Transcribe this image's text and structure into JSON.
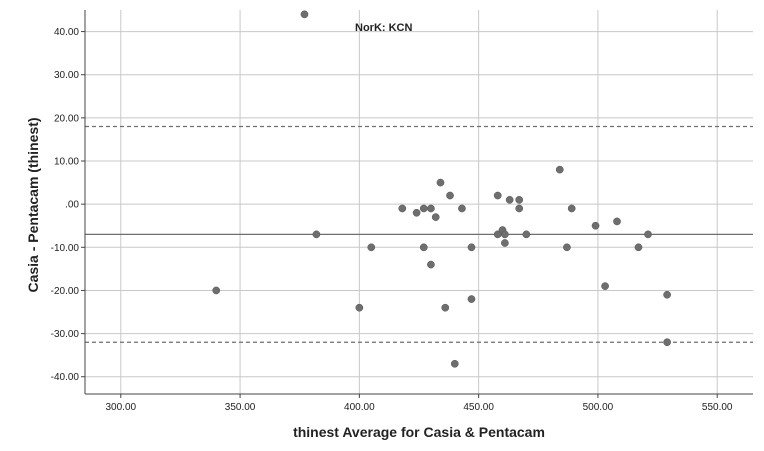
{
  "chart_data": {
    "type": "scatter",
    "title": "",
    "annotation": "NorK: KCN",
    "xlabel": "thinest Average for Casia & Pentacam",
    "ylabel": "Casia - Pentacam (thinest)",
    "xlim": [
      285,
      565
    ],
    "ylim": [
      -44,
      45
    ],
    "x_ticks": [
      300,
      350,
      400,
      450,
      500,
      550
    ],
    "x_tick_labels": [
      "300.00",
      "350.00",
      "400.00",
      "450.00",
      "500.00",
      "550.00"
    ],
    "y_ticks": [
      40,
      30,
      20,
      10,
      0,
      -10,
      -20,
      -30,
      -40
    ],
    "y_tick_labels": [
      "40.00",
      "30.00",
      "20.00",
      "10.00",
      ".00",
      "-10.00",
      "-20.00",
      "-30.00",
      "-40.00"
    ],
    "grid": true,
    "reference_lines": [
      {
        "type": "mean",
        "value": -7,
        "style": "solid"
      },
      {
        "type": "upper-limit",
        "value": 18,
        "style": "dashed"
      },
      {
        "type": "lower-limit",
        "value": -32,
        "style": "dashed"
      }
    ],
    "marker_color": "#6e6e6e",
    "line_color": "#6f6f6f",
    "grid_color": "#c8c8c8",
    "points": [
      {
        "x": 377,
        "y": 44
      },
      {
        "x": 340,
        "y": -20
      },
      {
        "x": 382,
        "y": -7
      },
      {
        "x": 400,
        "y": -24
      },
      {
        "x": 405,
        "y": -10
      },
      {
        "x": 418,
        "y": -1
      },
      {
        "x": 424,
        "y": -2
      },
      {
        "x": 427,
        "y": -1
      },
      {
        "x": 427,
        "y": -10
      },
      {
        "x": 430,
        "y": -1
      },
      {
        "x": 430,
        "y": -14
      },
      {
        "x": 432,
        "y": -3
      },
      {
        "x": 434,
        "y": 5
      },
      {
        "x": 436,
        "y": -24
      },
      {
        "x": 438,
        "y": 2
      },
      {
        "x": 440,
        "y": -37
      },
      {
        "x": 443,
        "y": -1
      },
      {
        "x": 447,
        "y": -10
      },
      {
        "x": 447,
        "y": -22
      },
      {
        "x": 458,
        "y": 2
      },
      {
        "x": 458,
        "y": -7
      },
      {
        "x": 460,
        "y": -6
      },
      {
        "x": 461,
        "y": -7
      },
      {
        "x": 461,
        "y": -9
      },
      {
        "x": 463,
        "y": 1
      },
      {
        "x": 467,
        "y": 1
      },
      {
        "x": 467,
        "y": -1
      },
      {
        "x": 470,
        "y": -7
      },
      {
        "x": 484,
        "y": 8
      },
      {
        "x": 487,
        "y": -10
      },
      {
        "x": 489,
        "y": -1
      },
      {
        "x": 499,
        "y": -5
      },
      {
        "x": 503,
        "y": -19
      },
      {
        "x": 508,
        "y": -4
      },
      {
        "x": 517,
        "y": -10
      },
      {
        "x": 521,
        "y": -7
      },
      {
        "x": 529,
        "y": -21
      },
      {
        "x": 529,
        "y": -32
      }
    ]
  }
}
